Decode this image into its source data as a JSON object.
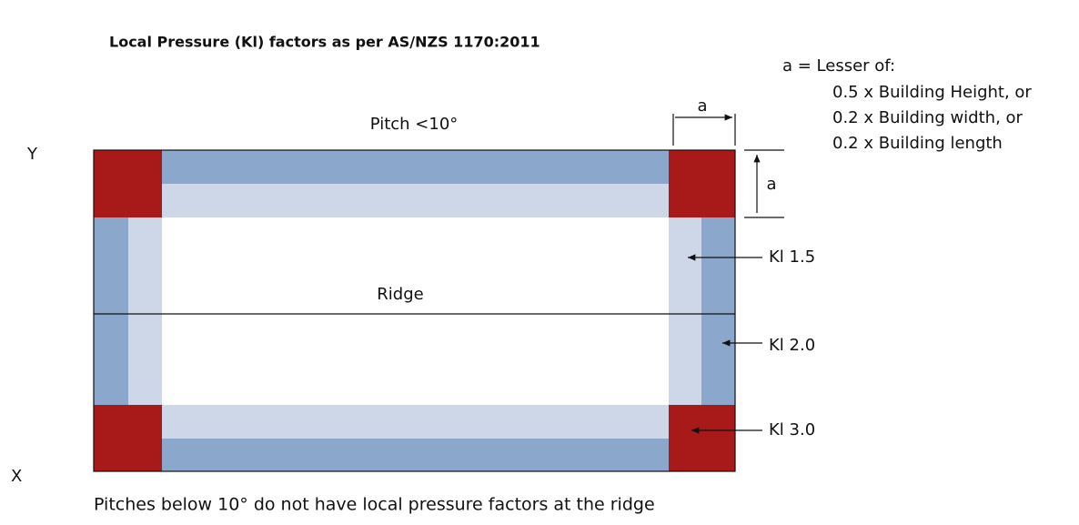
{
  "title": "Local Pressure (Kl) factors as per AS/NZS 1170:2011",
  "pitch": "Pitch <10°",
  "dimension": "a",
  "note": {
    "heading": "a = Lesser of:",
    "items": [
      "0.5 x Building Height, or",
      "0.2 x Building width, or",
      "0.2 x Building length"
    ]
  },
  "axes": {
    "y": "Y",
    "x": "X"
  },
  "ridge": "Ridge",
  "factors": [
    "Kl 1.5",
    "Kl 2.0",
    "Kl 3.0"
  ],
  "footer": "Pitches below 10° do not have local pressure factors at the ridge"
}
